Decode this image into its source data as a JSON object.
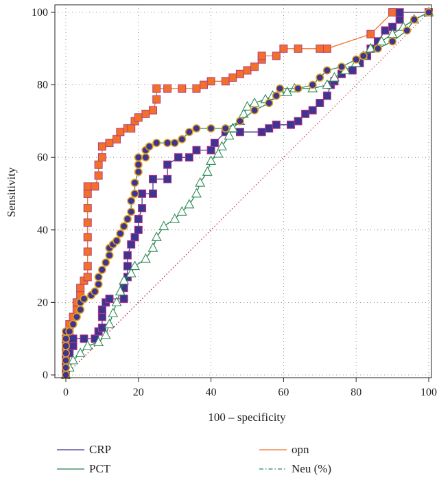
{
  "chart_data": {
    "type": "line",
    "title": "",
    "xlabel": "100 – specificity",
    "ylabel": "Sensitivity",
    "xlim": [
      0,
      100
    ],
    "ylim": [
      0,
      100
    ],
    "x_ticks": [
      0,
      20,
      40,
      60,
      80,
      100
    ],
    "y_ticks": [
      0,
      20,
      40,
      60,
      80,
      100
    ],
    "grid": "dotted",
    "legend_position": "bottom",
    "reference_line": {
      "from": [
        0,
        0
      ],
      "to": [
        100,
        100
      ],
      "color": "#c0304a",
      "style": "dotted"
    },
    "series": [
      {
        "name": "opn",
        "color": "#f2702a",
        "marker": "square",
        "marker_fill": "#f2702a",
        "marker_edge": "#b04080",
        "points": [
          [
            0,
            0
          ],
          [
            0,
            2
          ],
          [
            0,
            4
          ],
          [
            0,
            6
          ],
          [
            0,
            8
          ],
          [
            0,
            10
          ],
          [
            1,
            12
          ],
          [
            1,
            14
          ],
          [
            2,
            16
          ],
          [
            3,
            18
          ],
          [
            3,
            20
          ],
          [
            4,
            22
          ],
          [
            4,
            24
          ],
          [
            5,
            26
          ],
          [
            6,
            27
          ],
          [
            6,
            30
          ],
          [
            6,
            34
          ],
          [
            6,
            38
          ],
          [
            6,
            42
          ],
          [
            6,
            46
          ],
          [
            6,
            50
          ],
          [
            6,
            52
          ],
          [
            8,
            52
          ],
          [
            9,
            55
          ],
          [
            9,
            58
          ],
          [
            10,
            60
          ],
          [
            10,
            63
          ],
          [
            12,
            64
          ],
          [
            14,
            65
          ],
          [
            15,
            67
          ],
          [
            17,
            68
          ],
          [
            18,
            68
          ],
          [
            19,
            70
          ],
          [
            20,
            71
          ],
          [
            22,
            72
          ],
          [
            24,
            73
          ],
          [
            25,
            76
          ],
          [
            25,
            79
          ],
          [
            28,
            79
          ],
          [
            32,
            79
          ],
          [
            36,
            79
          ],
          [
            38,
            80
          ],
          [
            40,
            81
          ],
          [
            44,
            81
          ],
          [
            46,
            82
          ],
          [
            48,
            83
          ],
          [
            50,
            84
          ],
          [
            52,
            85
          ],
          [
            54,
            87
          ],
          [
            54,
            88
          ],
          [
            58,
            88
          ],
          [
            60,
            90
          ],
          [
            64,
            90
          ],
          [
            70,
            90
          ],
          [
            72,
            90
          ],
          [
            84,
            94
          ],
          [
            90,
            100
          ],
          [
            100,
            100
          ]
        ]
      },
      {
        "name": "CRP",
        "color": "#3d3590",
        "marker": "square",
        "marker_fill": "#3d3590",
        "marker_edge": "#c0308a",
        "points": [
          [
            0,
            0
          ],
          [
            0,
            2
          ],
          [
            0,
            4
          ],
          [
            1,
            6
          ],
          [
            2,
            8
          ],
          [
            2,
            10
          ],
          [
            5,
            10
          ],
          [
            8,
            10
          ],
          [
            9,
            12
          ],
          [
            10,
            13
          ],
          [
            10,
            16
          ],
          [
            10,
            18
          ],
          [
            11,
            20
          ],
          [
            12,
            21
          ],
          [
            16,
            21
          ],
          [
            16,
            24
          ],
          [
            17,
            27
          ],
          [
            17,
            30
          ],
          [
            17,
            33
          ],
          [
            18,
            36
          ],
          [
            19,
            38
          ],
          [
            20,
            40
          ],
          [
            20,
            43
          ],
          [
            21,
            46
          ],
          [
            21,
            50
          ],
          [
            24,
            50
          ],
          [
            24,
            54
          ],
          [
            28,
            54
          ],
          [
            28,
            58
          ],
          [
            31,
            60
          ],
          [
            34,
            60
          ],
          [
            36,
            62
          ],
          [
            40,
            62
          ],
          [
            41,
            64
          ],
          [
            44,
            67
          ],
          [
            48,
            67
          ],
          [
            54,
            67
          ],
          [
            56,
            68
          ],
          [
            58,
            69
          ],
          [
            62,
            69
          ],
          [
            64,
            70
          ],
          [
            66,
            72
          ],
          [
            68,
            73
          ],
          [
            70,
            75
          ],
          [
            72,
            77
          ],
          [
            73,
            80
          ],
          [
            74,
            81
          ],
          [
            76,
            83
          ],
          [
            79,
            84
          ],
          [
            81,
            86
          ],
          [
            83,
            88
          ],
          [
            84,
            90
          ],
          [
            86,
            92
          ],
          [
            88,
            95
          ],
          [
            90,
            96
          ],
          [
            92,
            98
          ],
          [
            92,
            100
          ],
          [
            100,
            100
          ]
        ]
      },
      {
        "name": "PCT",
        "color": "#2e7d4e",
        "marker": "triangle",
        "marker_fill": "#ffffff",
        "marker_edge": "#2e8b57",
        "points": [
          [
            0,
            0
          ],
          [
            1,
            2
          ],
          [
            2,
            4
          ],
          [
            4,
            6
          ],
          [
            6,
            8
          ],
          [
            9,
            9
          ],
          [
            11,
            11
          ],
          [
            12,
            14
          ],
          [
            13,
            17
          ],
          [
            14,
            20
          ],
          [
            15,
            23
          ],
          [
            16,
            26
          ],
          [
            18,
            28
          ],
          [
            19,
            30
          ],
          [
            22,
            32
          ],
          [
            24,
            35
          ],
          [
            25,
            38
          ],
          [
            27,
            41
          ],
          [
            30,
            43
          ],
          [
            32,
            45
          ],
          [
            34,
            47
          ],
          [
            36,
            50
          ],
          [
            37,
            53
          ],
          [
            39,
            56
          ],
          [
            40,
            59
          ],
          [
            42,
            61
          ],
          [
            43,
            63
          ],
          [
            45,
            66
          ],
          [
            46,
            68
          ],
          [
            48,
            70
          ],
          [
            49,
            72
          ],
          [
            50,
            74
          ],
          [
            52,
            75
          ],
          [
            55,
            76
          ],
          [
            57,
            77
          ],
          [
            59,
            78
          ],
          [
            61,
            78
          ],
          [
            63,
            79
          ],
          [
            68,
            79
          ],
          [
            72,
            80
          ],
          [
            74,
            82
          ],
          [
            77,
            84
          ],
          [
            80,
            86
          ],
          [
            82,
            88
          ],
          [
            84,
            90
          ],
          [
            87,
            92
          ],
          [
            90,
            94
          ],
          [
            93,
            96
          ],
          [
            96,
            98
          ],
          [
            100,
            100
          ]
        ]
      },
      {
        "name": "Neu (%)",
        "color": "#2e8b57",
        "marker": "circle",
        "marker_fill": "#3d3590",
        "marker_edge": "#e0a020",
        "points": [
          [
            0,
            0
          ],
          [
            0,
            2
          ],
          [
            0,
            4
          ],
          [
            0,
            6
          ],
          [
            0,
            8
          ],
          [
            0,
            10
          ],
          [
            0,
            12
          ],
          [
            1,
            12
          ],
          [
            2,
            14
          ],
          [
            3,
            16
          ],
          [
            4,
            18
          ],
          [
            4,
            20
          ],
          [
            5,
            21
          ],
          [
            7,
            22
          ],
          [
            8,
            23
          ],
          [
            9,
            25
          ],
          [
            9,
            27
          ],
          [
            10,
            29
          ],
          [
            11,
            31
          ],
          [
            12,
            33
          ],
          [
            12,
            35
          ],
          [
            13,
            36
          ],
          [
            14,
            37
          ],
          [
            15,
            39
          ],
          [
            16,
            41
          ],
          [
            17,
            43
          ],
          [
            18,
            45
          ],
          [
            18,
            48
          ],
          [
            19,
            50
          ],
          [
            19,
            53
          ],
          [
            20,
            56
          ],
          [
            20,
            58
          ],
          [
            20,
            60
          ],
          [
            22,
            60
          ],
          [
            22,
            62
          ],
          [
            23,
            63
          ],
          [
            25,
            64
          ],
          [
            28,
            64
          ],
          [
            30,
            64
          ],
          [
            32,
            65
          ],
          [
            34,
            67
          ],
          [
            36,
            68
          ],
          [
            40,
            68
          ],
          [
            44,
            68
          ],
          [
            48,
            70
          ],
          [
            52,
            73
          ],
          [
            56,
            75
          ],
          [
            58,
            77
          ],
          [
            59,
            79
          ],
          [
            64,
            79
          ],
          [
            68,
            80
          ],
          [
            70,
            82
          ],
          [
            72,
            84
          ],
          [
            76,
            85
          ],
          [
            80,
            87
          ],
          [
            82,
            88
          ],
          [
            86,
            90
          ],
          [
            90,
            92
          ],
          [
            94,
            95
          ],
          [
            96,
            98
          ],
          [
            100,
            100
          ]
        ]
      }
    ],
    "legend": [
      {
        "label": "CRP",
        "color": "#3d3590",
        "style": "solid"
      },
      {
        "label": "opn",
        "color": "#f2702a",
        "style": "solid"
      },
      {
        "label": "PCT",
        "color": "#2e7d4e",
        "style": "solid"
      },
      {
        "label": "Neu (%)",
        "color": "#2e8b57",
        "style": "dashdot"
      }
    ]
  }
}
